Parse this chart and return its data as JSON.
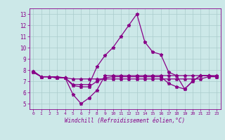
{
  "xlabel": "Windchill (Refroidissement éolien,°C)",
  "bg_color": "#cce8e8",
  "line_color": "#880088",
  "grid_color": "#aacccc",
  "x_hours": [
    0,
    1,
    2,
    3,
    4,
    5,
    6,
    7,
    8,
    9,
    10,
    11,
    12,
    13,
    14,
    15,
    16,
    17,
    18,
    19,
    20,
    21,
    22,
    23
  ],
  "line1": [
    7.9,
    7.4,
    7.4,
    7.4,
    7.3,
    6.7,
    6.7,
    6.7,
    8.3,
    9.3,
    10.0,
    11.0,
    12.0,
    13.0,
    10.5,
    9.6,
    9.4,
    7.8,
    7.5,
    6.3,
    7.0,
    7.5,
    7.5,
    7.4
  ],
  "line2": [
    7.9,
    7.4,
    7.4,
    7.3,
    7.3,
    5.8,
    5.0,
    5.5,
    6.2,
    7.5,
    7.5,
    7.5,
    7.5,
    7.5,
    7.5,
    7.5,
    7.5,
    7.5,
    7.5,
    7.5,
    7.5,
    7.5,
    7.5,
    7.5
  ],
  "line3": [
    7.8,
    7.4,
    7.4,
    7.3,
    7.3,
    7.2,
    7.2,
    7.2,
    7.2,
    7.2,
    7.2,
    7.2,
    7.2,
    7.2,
    7.2,
    7.2,
    7.2,
    7.2,
    7.2,
    7.2,
    7.2,
    7.2,
    7.4,
    7.4
  ],
  "line4": [
    7.8,
    7.4,
    7.4,
    7.3,
    7.3,
    6.6,
    6.5,
    6.5,
    7.0,
    7.3,
    7.4,
    7.4,
    7.4,
    7.4,
    7.4,
    7.4,
    7.4,
    6.8,
    6.5,
    6.3,
    7.0,
    7.5,
    7.5,
    7.4
  ],
  "ylim": [
    4.5,
    13.5
  ],
  "yticks": [
    5,
    6,
    7,
    8,
    9,
    10,
    11,
    12,
    13
  ],
  "xticks": [
    0,
    1,
    2,
    3,
    4,
    5,
    6,
    7,
    8,
    9,
    10,
    11,
    12,
    13,
    14,
    15,
    16,
    17,
    18,
    19,
    20,
    21,
    22,
    23
  ]
}
